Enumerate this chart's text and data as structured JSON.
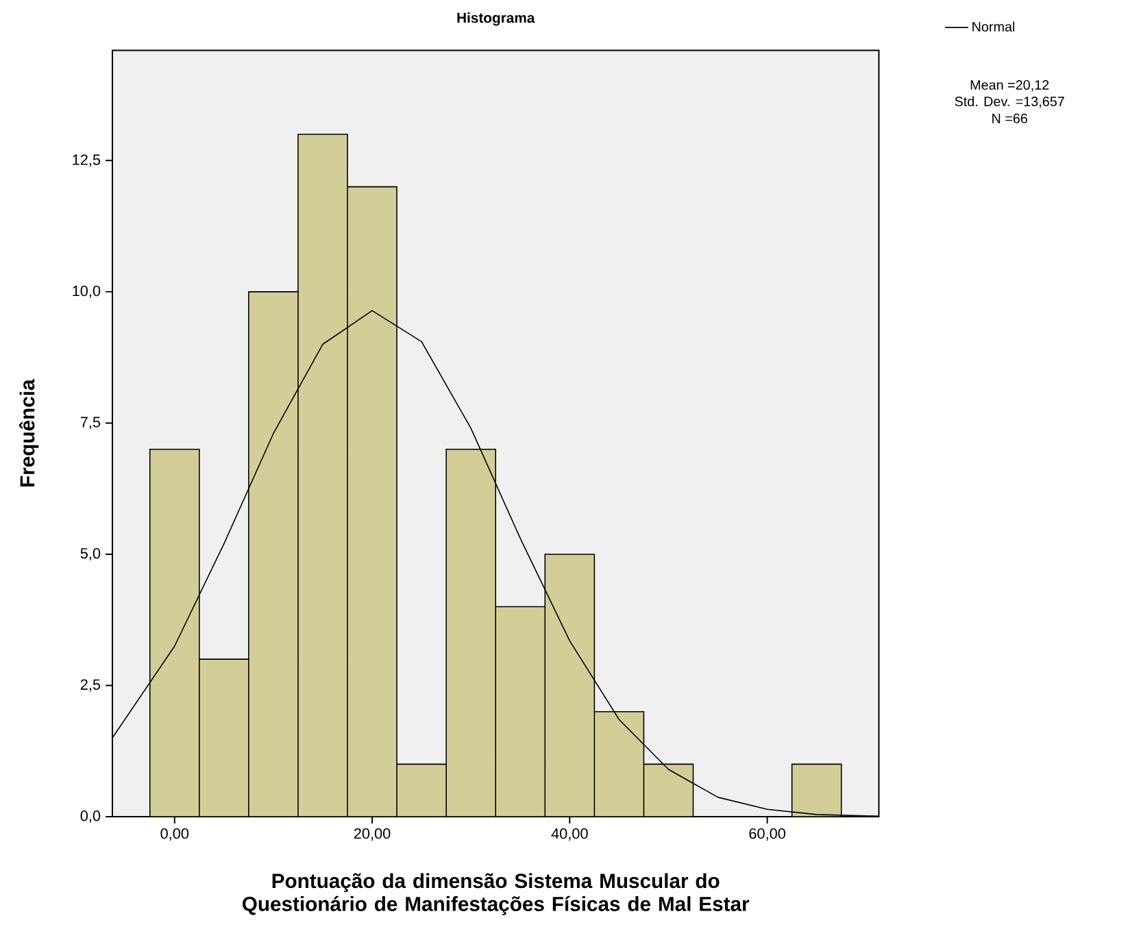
{
  "chart_data": {
    "type": "histogram",
    "title": "Histograma",
    "xlabel": "Pontuação da dimensão Sistema Muscular do Questionário de Manifestações Físicas de Mal Estar",
    "ylabel": "Frequência",
    "bins": [
      -2.5,
      2.5,
      7.5,
      12.5,
      17.5,
      22.5,
      27.5,
      32.5,
      37.5,
      42.5,
      47.5,
      52.5,
      57.5,
      62.5,
      67.5
    ],
    "values": [
      7,
      3,
      10,
      13,
      12,
      1,
      7,
      4,
      5,
      2,
      1,
      0,
      0,
      1
    ],
    "color": "#d3ce97",
    "series": [
      {
        "name": "Normal",
        "type": "line",
        "color": "#000000",
        "x": [
          -6.3,
          0,
          5,
          10,
          15,
          20,
          25,
          30,
          35,
          40,
          45,
          50,
          55,
          60,
          65,
          71.3
        ],
        "values": [
          1.5,
          3.25,
          5.2,
          7.3,
          9.0,
          9.64,
          9.05,
          7.4,
          5.3,
          3.35,
          1.85,
          0.9,
          0.37,
          0.14,
          0.04,
          0.01
        ]
      }
    ],
    "xlim": [
      -6.3,
      71.3
    ],
    "ylim": [
      0,
      14.6
    ],
    "xticks": [
      {
        "value": 0,
        "label": "0,00"
      },
      {
        "value": 20,
        "label": "20,00"
      },
      {
        "value": 40,
        "label": "40,00"
      },
      {
        "value": 60,
        "label": "60,00"
      }
    ],
    "yticks": [
      {
        "value": 0,
        "label": "0,0"
      },
      {
        "value": 2.5,
        "label": "2,5"
      },
      {
        "value": 5,
        "label": "5,0"
      },
      {
        "value": 7.5,
        "label": "7,5"
      },
      {
        "value": 10,
        "label": "10,0"
      },
      {
        "value": 12.5,
        "label": "12,5"
      }
    ],
    "legend": "top right",
    "annotations": [
      "Mean =20,12",
      "Std. Dev. =13,657",
      "N =66"
    ]
  }
}
